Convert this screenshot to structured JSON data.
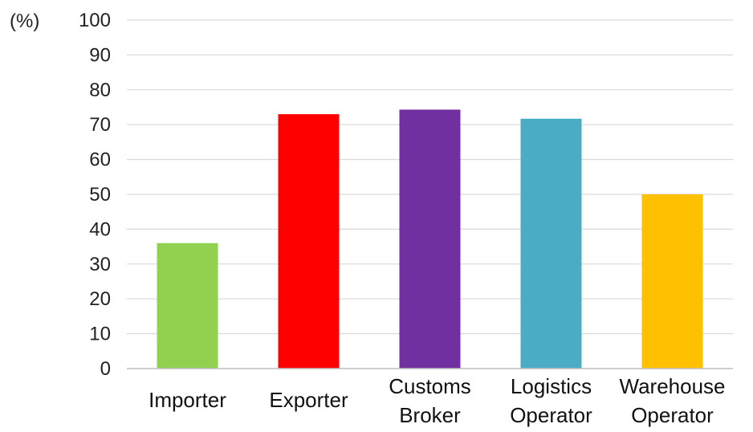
{
  "chart_data": {
    "type": "bar",
    "categories": [
      [
        "Importer"
      ],
      [
        "Exporter"
      ],
      [
        "Customs",
        "Broker"
      ],
      [
        "Logistics",
        "Operator"
      ],
      [
        "Warehouse",
        "Operator"
      ]
    ],
    "values": [
      36,
      73,
      74.3,
      71.7,
      50
    ],
    "colors": [
      "#92d050",
      "#ff0000",
      "#7030a0",
      "#4bacc6",
      "#ffc000"
    ],
    "ylabel": "(%)",
    "ylim": [
      0,
      100
    ],
    "yticks": [
      0,
      10,
      20,
      30,
      40,
      50,
      60,
      70,
      80,
      90,
      100
    ],
    "grid": true,
    "gridColor": "#d9d9d9",
    "axisColor": "#bfbfbf"
  }
}
